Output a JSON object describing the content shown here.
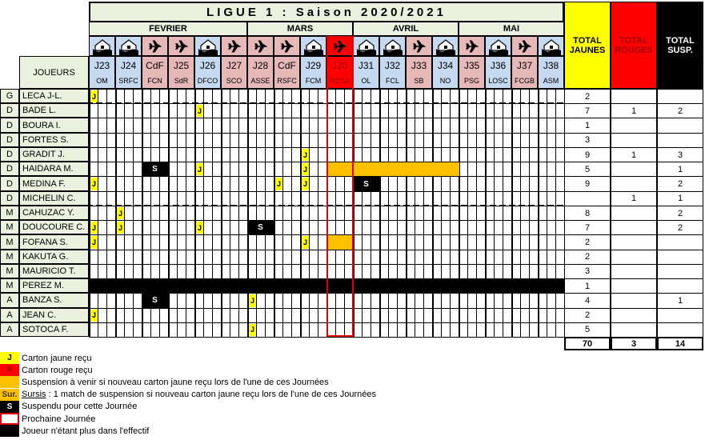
{
  "title": "LIGUE 1 : Saison 2020/2021",
  "players_header": "JOUEURS",
  "months": [
    {
      "label": "FEVRIER",
      "span": 6
    },
    {
      "label": "MARS",
      "span": 4
    },
    {
      "label": "AVRIL",
      "span": 4
    },
    {
      "label": "MAI",
      "span": 4
    }
  ],
  "matches": [
    {
      "round": "J23",
      "opponent": "OM",
      "venue": "home",
      "icon": "house-icon"
    },
    {
      "round": "J24",
      "opponent": "SRFC",
      "venue": "home",
      "icon": "house-icon"
    },
    {
      "round": "CdF",
      "opponent": "FCN",
      "venue": "away",
      "icon": "airplane-icon"
    },
    {
      "round": "J25",
      "opponent": "SdR",
      "venue": "away",
      "icon": "airplane-icon"
    },
    {
      "round": "J26",
      "opponent": "DFCO",
      "venue": "home",
      "icon": "house-icon"
    },
    {
      "round": "J27",
      "opponent": "SCO",
      "venue": "away",
      "icon": "airplane-icon"
    },
    {
      "round": "J28",
      "opponent": "ASSE",
      "venue": "away",
      "icon": "airplane-icon"
    },
    {
      "round": "CdF",
      "opponent": "RSFC",
      "venue": "away",
      "icon": "airplane-icon"
    },
    {
      "round": "J29",
      "opponent": "FCM",
      "venue": "home",
      "icon": "house-icon"
    },
    {
      "round": "J30",
      "opponent": "RCSA",
      "venue": "away",
      "icon": "airplane-icon",
      "next": true
    },
    {
      "round": "J31",
      "opponent": "OL",
      "venue": "home",
      "icon": "house-icon"
    },
    {
      "round": "J32",
      "opponent": "FCL",
      "venue": "home",
      "icon": "house-icon"
    },
    {
      "round": "J33",
      "opponent": "SB",
      "venue": "away",
      "icon": "airplane-icon"
    },
    {
      "round": "J34",
      "opponent": "NO",
      "venue": "home",
      "icon": "house-icon"
    },
    {
      "round": "J35",
      "opponent": "PSG",
      "venue": "away",
      "icon": "airplane-icon"
    },
    {
      "round": "J36",
      "opponent": "LOSC",
      "venue": "home",
      "icon": "house-icon"
    },
    {
      "round": "J37",
      "opponent": "FCGB",
      "venue": "away",
      "icon": "airplane-icon"
    },
    {
      "round": "J38",
      "opponent": "ASM",
      "venue": "home",
      "icon": "house-icon"
    }
  ],
  "totals_headers": {
    "yellow": "TOTAL JAUNES",
    "red": "TOTAL ROUGES",
    "susp": "TOTAL SUSP."
  },
  "players": [
    {
      "pos": "G",
      "name": "LECA J-L.",
      "yellow": "2",
      "red": "",
      "susp": "",
      "yellow_cards": [
        "J23"
      ],
      "suspended": [],
      "warning": [],
      "divider_after": true
    },
    {
      "pos": "D",
      "name": "BADE L.",
      "yellow": "7",
      "red": "1",
      "susp": "2",
      "yellow_cards": [
        "J26"
      ],
      "suspended": [],
      "warning": []
    },
    {
      "pos": "D",
      "name": "BOURA I.",
      "yellow": "1",
      "red": "",
      "susp": "",
      "yellow_cards": [],
      "suspended": [],
      "warning": []
    },
    {
      "pos": "D",
      "name": "FORTES S.",
      "yellow": "3",
      "red": "",
      "susp": "",
      "yellow_cards": [],
      "suspended": [],
      "warning": []
    },
    {
      "pos": "D",
      "name": "GRADIT J.",
      "yellow": "9",
      "red": "1",
      "susp": "3",
      "yellow_cards": [
        "J29"
      ],
      "suspended": [],
      "warning": []
    },
    {
      "pos": "D",
      "name": "HAIDARA M.",
      "yellow": "5",
      "red": "",
      "susp": "1",
      "yellow_cards": [
        "J26",
        "J29"
      ],
      "suspended": [
        "CdF-FCN"
      ],
      "warning": [
        "J30",
        "J31",
        "J32",
        "J33",
        "J34"
      ]
    },
    {
      "pos": "D",
      "name": "MEDINA F.",
      "yellow": "9",
      "red": "",
      "susp": "2",
      "yellow_cards": [
        "J23",
        "CdF-RSFC",
        "J29"
      ],
      "suspended": [
        "J31"
      ],
      "warning": []
    },
    {
      "pos": "D",
      "name": "MICHELIN C.",
      "yellow": "",
      "red": "1",
      "susp": "1",
      "yellow_cards": [],
      "suspended": [],
      "warning": [],
      "divider_after": true
    },
    {
      "pos": "M",
      "name": "CAHUZAC Y.",
      "yellow": "8",
      "red": "",
      "susp": "2",
      "yellow_cards": [
        "J24"
      ],
      "suspended": [],
      "warning": []
    },
    {
      "pos": "M",
      "name": "DOUCOURE C.",
      "yellow": "7",
      "red": "",
      "susp": "2",
      "yellow_cards": [
        "J23",
        "J24",
        "J26"
      ],
      "suspended": [
        "J28"
      ],
      "warning": []
    },
    {
      "pos": "M",
      "name": "FOFANA S.",
      "yellow": "2",
      "red": "",
      "susp": "",
      "yellow_cards": [
        "J23",
        "J29"
      ],
      "suspended": [],
      "warning": [
        "J30"
      ]
    },
    {
      "pos": "M",
      "name": "KAKUTA G.",
      "yellow": "2",
      "red": "",
      "susp": "",
      "yellow_cards": [],
      "suspended": [],
      "warning": []
    },
    {
      "pos": "M",
      "name": "MAURICIO T.",
      "yellow": "3",
      "red": "",
      "susp": "",
      "yellow_cards": [],
      "suspended": [],
      "warning": []
    },
    {
      "pos": "M",
      "name": "PEREZ M.",
      "yellow": "1",
      "red": "",
      "susp": "",
      "yellow_cards": [],
      "suspended": [],
      "warning": [],
      "left_squad": true,
      "divider_after": true
    },
    {
      "pos": "A",
      "name": "BANZA S.",
      "yellow": "4",
      "red": "",
      "susp": "1",
      "yellow_cards": [
        "J28"
      ],
      "suspended": [
        "CdF-FCN"
      ],
      "warning": []
    },
    {
      "pos": "A",
      "name": "JEAN C.",
      "yellow": "2",
      "red": "",
      "susp": "",
      "yellow_cards": [
        "J23"
      ],
      "suspended": [],
      "warning": []
    },
    {
      "pos": "A",
      "name": "SOTOCA F.",
      "yellow": "5",
      "red": "",
      "susp": "",
      "yellow_cards": [
        "J28"
      ],
      "suspended": [],
      "warning": []
    }
  ],
  "grand_totals": {
    "yellow": "70",
    "red": "3",
    "susp": "14"
  },
  "mark_labels": {
    "yellow": "J",
    "suspended": "S"
  },
  "legend": [
    {
      "swatch": "J",
      "type": "yellow",
      "text": "Carton jaune reçu"
    },
    {
      "swatch": "R",
      "type": "red",
      "text": "Carton rouge reçu"
    },
    {
      "swatch": "",
      "type": "orange",
      "text": "Suspension à venir si nouveau carton jaune reçu lors de l'une de ces Journées"
    },
    {
      "swatch": "Sur.",
      "type": "sursis",
      "text_underlined": "Sursis",
      "text": " : 1 match de suspension si nouveau carton jaune reçu lors de l'une de ces Journées"
    },
    {
      "swatch": "S",
      "type": "suspended",
      "text": "Suspendu pour cette Journée"
    },
    {
      "swatch": "",
      "type": "next",
      "text": "Prochaine Journée"
    },
    {
      "swatch": "",
      "type": "left",
      "text": "Joueur n'étant plus dans l'effectif"
    }
  ],
  "colors": {
    "yellow": "#ffff00",
    "red": "#ff0000",
    "orange": "#ffc000",
    "home": "#c5d9f1",
    "away": "#e6b9b8",
    "header": "#ebf1de"
  }
}
